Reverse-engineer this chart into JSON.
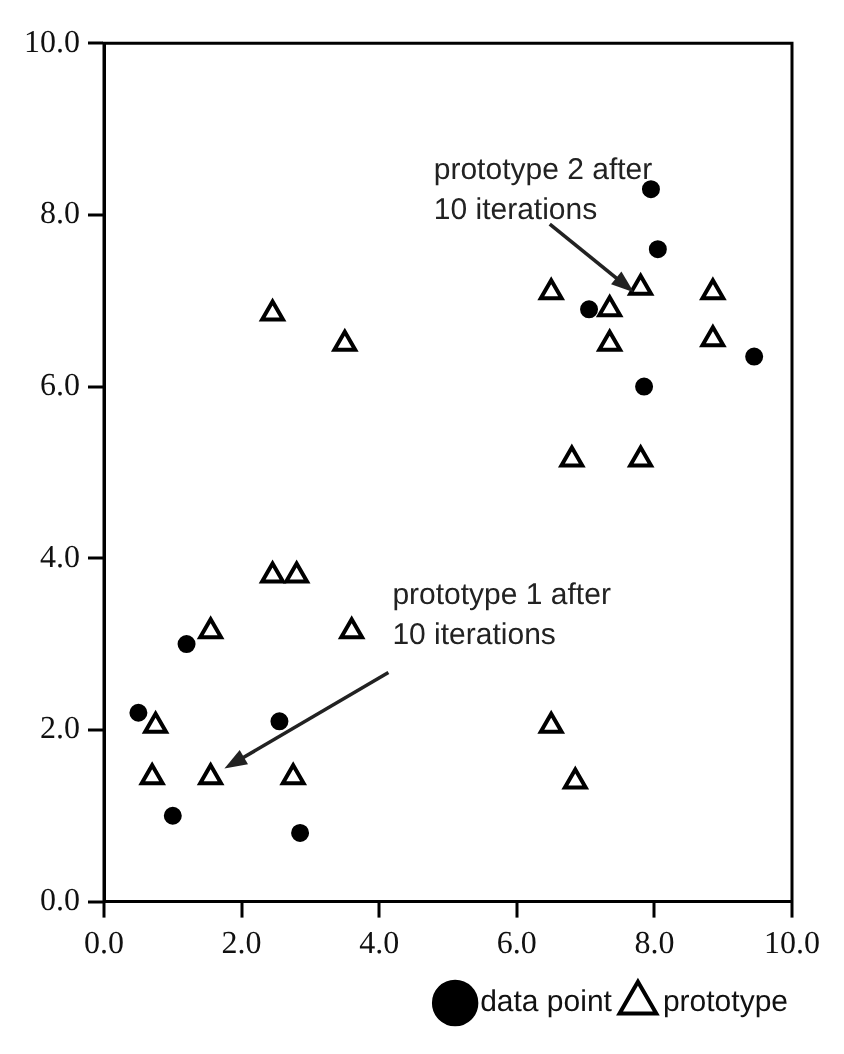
{
  "chart_data": {
    "type": "scatter",
    "xlim": [
      0,
      10
    ],
    "ylim": [
      0,
      10
    ],
    "xticks": [
      {
        "value": 0,
        "label": "0.0"
      },
      {
        "value": 2,
        "label": "2.0"
      },
      {
        "value": 4,
        "label": "4.0"
      },
      {
        "value": 6,
        "label": "6.0"
      },
      {
        "value": 8,
        "label": "8.0"
      },
      {
        "value": 10,
        "label": "10.0"
      }
    ],
    "yticks": [
      {
        "value": 0,
        "label": "0.0"
      },
      {
        "value": 2,
        "label": "2.0"
      },
      {
        "value": 4,
        "label": "4.0"
      },
      {
        "value": 6,
        "label": "6.0"
      },
      {
        "value": 8,
        "label": "8.0"
      },
      {
        "value": 10,
        "label": "10.0"
      }
    ],
    "grid": false,
    "legend": "bottom right",
    "series": [
      {
        "name": "data point",
        "color": "#000000",
        "marker": "circle",
        "x": [
          0.5,
          1.2,
          1.0,
          2.55,
          2.85,
          7.95,
          8.05,
          7.05,
          7.85,
          9.45
        ],
        "values": [
          2.2,
          3.0,
          1.0,
          2.1,
          0.8,
          8.3,
          7.6,
          6.9,
          6.0,
          6.35
        ]
      },
      {
        "name": "prototype",
        "color": "#000000",
        "marker": "triangle",
        "x": [
          0.75,
          0.7,
          1.55,
          1.55,
          2.45,
          2.8,
          3.6,
          2.75,
          6.5,
          6.85,
          6.8,
          7.8,
          2.45,
          3.5,
          6.5,
          7.35,
          7.35,
          7.8,
          8.85,
          8.85
        ],
        "values": [
          2.05,
          1.45,
          1.45,
          3.15,
          3.8,
          3.8,
          3.15,
          1.45,
          2.05,
          1.4,
          5.15,
          5.15,
          6.85,
          6.5,
          7.1,
          6.9,
          6.5,
          7.15,
          7.1,
          6.55
        ]
      }
    ],
    "annotations": [
      {
        "text": "prototype 2 after\n10 iterations",
        "x": 7.7,
        "y": 7.1
      },
      {
        "text": "prototype 1 after\n10 iterations",
        "x": 1.75,
        "y": 1.55
      }
    ]
  }
}
